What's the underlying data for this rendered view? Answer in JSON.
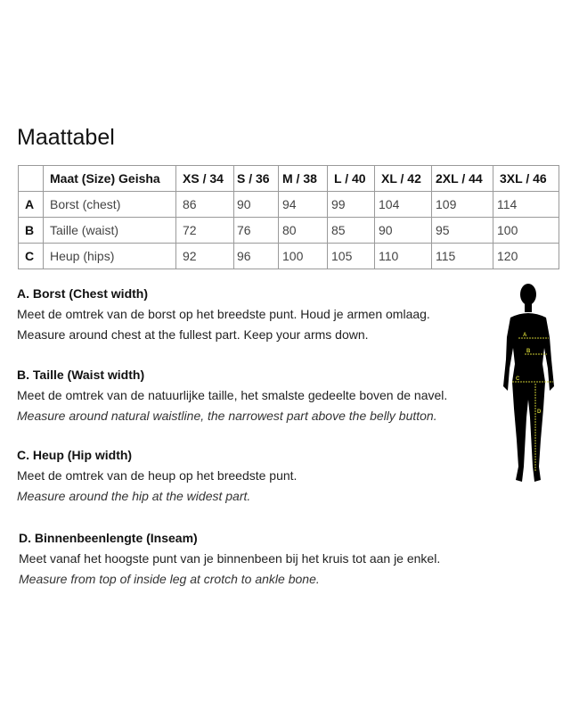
{
  "title": "Maattabel",
  "table": {
    "header": [
      "",
      "Maat (Size) Geisha",
      "XS / 34",
      "S / 36",
      "M / 38",
      "L / 40",
      "XL / 42",
      "2XL / 44",
      "3XL / 46"
    ],
    "rows": [
      [
        "A",
        "Borst (chest)",
        "86",
        "90",
        "94",
        "99",
        "104",
        "109",
        "114"
      ],
      [
        "B",
        "Taille (waist)",
        "72",
        "76",
        "80",
        "85",
        "90",
        "95",
        "100"
      ],
      [
        "C",
        "Heup (hips)",
        "92",
        "96",
        "100",
        "105",
        "110",
        "115",
        "120"
      ]
    ]
  },
  "sections": [
    {
      "heading": "A. Borst (Chest width)",
      "nl": "Meet de omtrek van de borst op het breedste punt. Houd je armen omlaag.",
      "en": "Measure around chest at the fullest part. Keep your arms down."
    },
    {
      "heading": "B. Taille (Waist width)",
      "nl": "Meet de omtrek van de natuurlijke taille, het smalste gedeelte boven de navel.",
      "en": "Measure around natural waistline, the narrowest part above the belly button."
    },
    {
      "heading": "C. Heup (Hip width)",
      "nl": "Meet de omtrek van de heup op het breedste punt.",
      "en": "Measure around the hip at the widest part."
    },
    {
      "heading": "D. Binnenbeenlengte (Inseam)",
      "nl": "Meet vanaf het hoogste punt van je binnenbeen bij het kruis tot aan je enkel.",
      "en": "Measure from top of inside leg at crotch to ankle bone."
    }
  ],
  "figure": {
    "labels": [
      "A",
      "B",
      "C",
      "D"
    ],
    "line_color": "#c8c832",
    "body_color": "#000000"
  }
}
